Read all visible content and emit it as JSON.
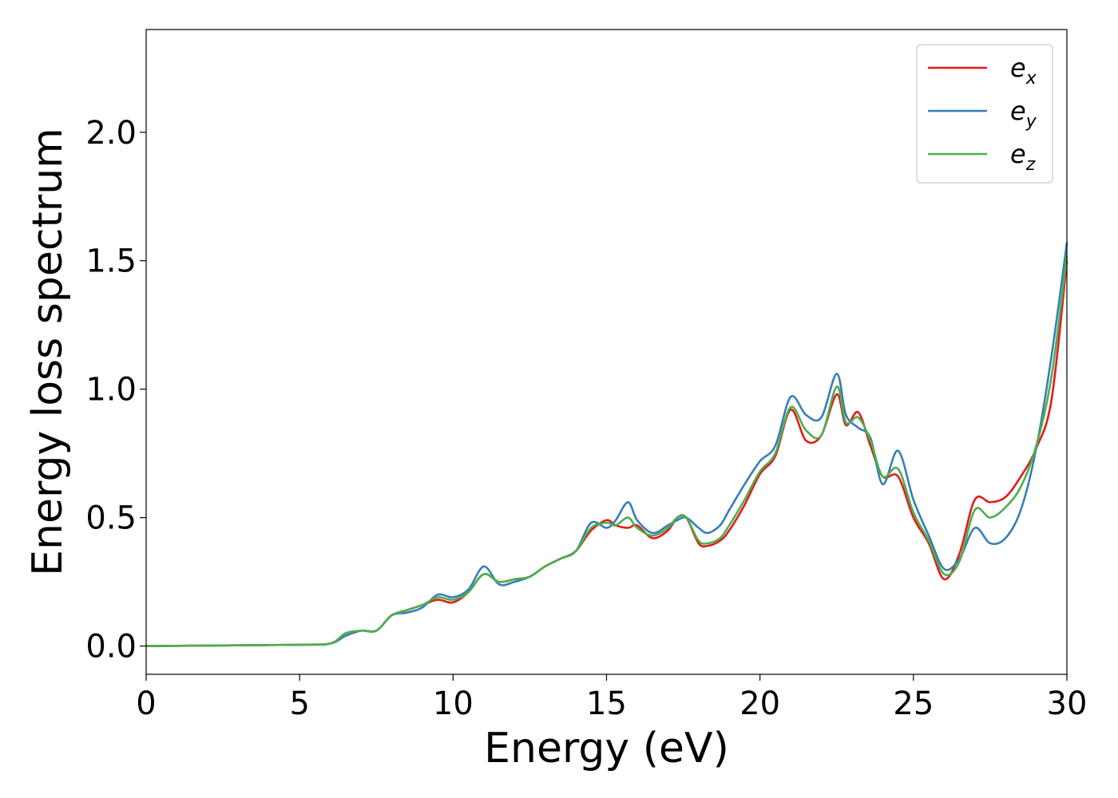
{
  "chart_data": {
    "type": "line",
    "title": "",
    "xlabel": "Energy (eV)",
    "ylabel": "Energy loss spectrum",
    "xlim": [
      0,
      30
    ],
    "ylim": [
      -0.11,
      2.4
    ],
    "xticks": [
      0,
      5,
      10,
      15,
      20,
      25,
      30
    ],
    "xtick_labels": [
      "0",
      "5",
      "10",
      "15",
      "20",
      "25",
      "30"
    ],
    "yticks": [
      0.0,
      0.5,
      1.0,
      1.5,
      2.0
    ],
    "ytick_labels": [
      "0.0",
      "0.5",
      "1.0",
      "1.5",
      "2.0"
    ],
    "grid": false,
    "legend_position": "top-right",
    "series": [
      {
        "name": "e_x",
        "label_base": "e",
        "label_sub": "x",
        "color": "#e41a1c",
        "x": [
          0,
          5,
          6,
          6.5,
          7,
          7.5,
          8,
          8.5,
          9,
          9.5,
          10,
          10.5,
          11,
          11.5,
          12,
          12.5,
          13,
          13.5,
          14,
          14.5,
          15,
          15.3,
          15.7,
          16,
          16.5,
          17,
          17.3,
          17.6,
          18,
          18.3,
          18.7,
          19,
          19.5,
          20,
          20.5,
          21,
          21.5,
          22,
          22.5,
          22.8,
          23.2,
          23.6,
          24,
          24.5,
          25,
          25.5,
          26,
          26.5,
          27,
          27.5,
          28,
          28.5,
          29,
          29.5,
          30
        ],
        "y": [
          0,
          0.005,
          0.01,
          0.04,
          0.06,
          0.06,
          0.12,
          0.14,
          0.16,
          0.18,
          0.17,
          0.21,
          0.28,
          0.25,
          0.26,
          0.27,
          0.31,
          0.34,
          0.37,
          0.45,
          0.49,
          0.47,
          0.46,
          0.47,
          0.42,
          0.45,
          0.5,
          0.5,
          0.4,
          0.39,
          0.41,
          0.45,
          0.55,
          0.67,
          0.74,
          0.92,
          0.8,
          0.82,
          0.98,
          0.86,
          0.91,
          0.78,
          0.66,
          0.66,
          0.5,
          0.4,
          0.26,
          0.36,
          0.57,
          0.56,
          0.58,
          0.66,
          0.77,
          0.96,
          1.5
        ]
      },
      {
        "name": "e_y",
        "label_base": "e",
        "label_sub": "y",
        "color": "#377eb8",
        "x": [
          0,
          5,
          6,
          6.5,
          7,
          7.5,
          8,
          8.5,
          9,
          9.5,
          10,
          10.5,
          11,
          11.5,
          12,
          12.5,
          13,
          13.5,
          14,
          14.5,
          15,
          15.3,
          15.7,
          16,
          16.5,
          17,
          17.3,
          17.6,
          18,
          18.3,
          18.7,
          19,
          19.5,
          20,
          20.5,
          21,
          21.5,
          22,
          22.5,
          22.8,
          23.2,
          23.6,
          24,
          24.5,
          25,
          25.5,
          26,
          26.5,
          27,
          27.5,
          28,
          28.5,
          29,
          29.5,
          30
        ],
        "y": [
          0,
          0.005,
          0.01,
          0.04,
          0.06,
          0.06,
          0.12,
          0.13,
          0.15,
          0.2,
          0.19,
          0.22,
          0.31,
          0.24,
          0.25,
          0.27,
          0.31,
          0.34,
          0.37,
          0.48,
          0.46,
          0.49,
          0.56,
          0.49,
          0.44,
          0.47,
          0.49,
          0.5,
          0.46,
          0.44,
          0.47,
          0.53,
          0.63,
          0.72,
          0.78,
          0.97,
          0.9,
          0.89,
          1.06,
          0.9,
          0.85,
          0.81,
          0.63,
          0.76,
          0.57,
          0.43,
          0.3,
          0.34,
          0.46,
          0.4,
          0.42,
          0.53,
          0.77,
          1.13,
          1.57
        ]
      },
      {
        "name": "e_z",
        "label_base": "e",
        "label_sub": "z",
        "color": "#4daf4a",
        "x": [
          0,
          5,
          6,
          6.5,
          7,
          7.5,
          8,
          8.5,
          9,
          9.5,
          10,
          10.5,
          11,
          11.5,
          12,
          12.5,
          13,
          13.5,
          14,
          14.5,
          15,
          15.3,
          15.7,
          16,
          16.5,
          17,
          17.3,
          17.6,
          18,
          18.3,
          18.7,
          19,
          19.5,
          20,
          20.5,
          21,
          21.5,
          22,
          22.5,
          22.8,
          23.2,
          23.6,
          24,
          24.5,
          25,
          25.5,
          26,
          26.5,
          27,
          27.5,
          28,
          28.5,
          29,
          29.5,
          30
        ],
        "y": [
          0,
          0.005,
          0.01,
          0.05,
          0.06,
          0.06,
          0.12,
          0.14,
          0.16,
          0.19,
          0.18,
          0.21,
          0.28,
          0.25,
          0.26,
          0.27,
          0.31,
          0.34,
          0.37,
          0.46,
          0.48,
          0.47,
          0.5,
          0.46,
          0.43,
          0.46,
          0.5,
          0.5,
          0.41,
          0.4,
          0.42,
          0.47,
          0.57,
          0.68,
          0.75,
          0.93,
          0.84,
          0.82,
          1.01,
          0.87,
          0.89,
          0.8,
          0.66,
          0.69,
          0.52,
          0.41,
          0.28,
          0.33,
          0.53,
          0.5,
          0.54,
          0.62,
          0.78,
          1.05,
          1.52
        ]
      }
    ]
  }
}
